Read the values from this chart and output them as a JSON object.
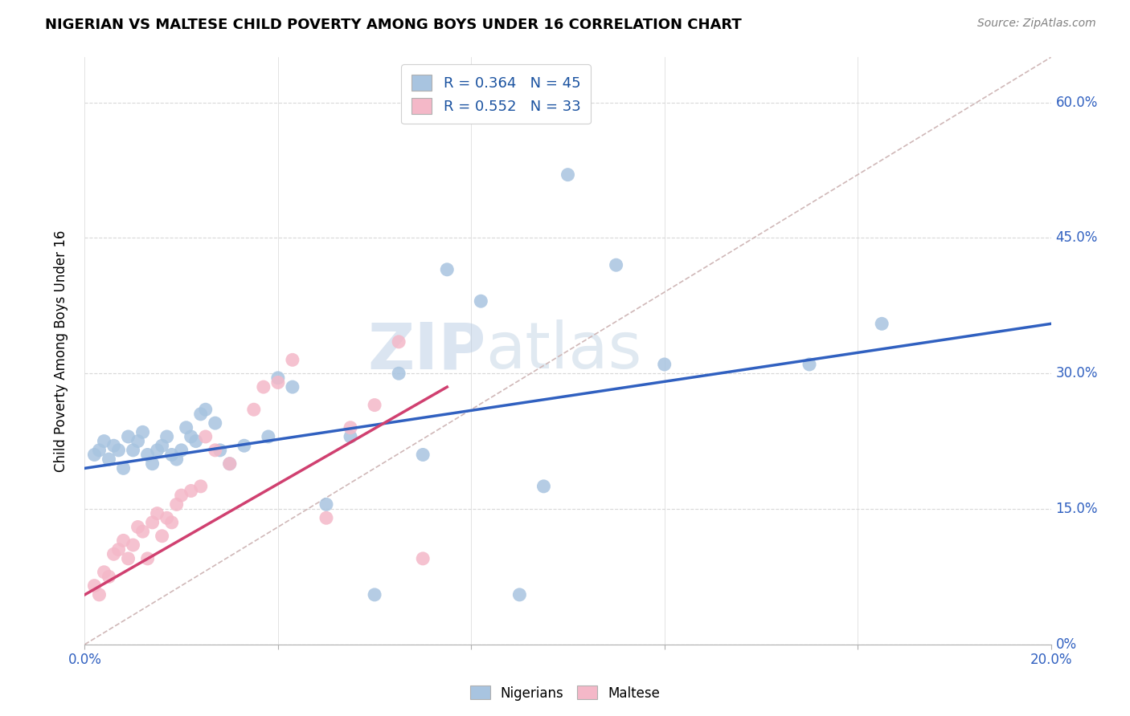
{
  "title": "NIGERIAN VS MALTESE CHILD POVERTY AMONG BOYS UNDER 16 CORRELATION CHART",
  "source": "Source: ZipAtlas.com",
  "ylabel": "Child Poverty Among Boys Under 16",
  "xlim": [
    0.0,
    0.2
  ],
  "ylim": [
    0.0,
    0.65
  ],
  "xticks": [
    0.0,
    0.04,
    0.08,
    0.12,
    0.16,
    0.2
  ],
  "yticks": [
    0.0,
    0.15,
    0.3,
    0.45,
    0.6
  ],
  "nigerian_R": 0.364,
  "nigerian_N": 45,
  "maltese_R": 0.552,
  "maltese_N": 33,
  "nigerian_color": "#a8c4e0",
  "maltese_color": "#f4b8c8",
  "nigerian_line_color": "#3060c0",
  "maltese_line_color": "#d04070",
  "diagonal_color": "#c8c8c8",
  "watermark_zip": "ZIP",
  "watermark_atlas": "atlas",
  "legend_label_nigerian": "Nigerians",
  "legend_label_maltese": "Maltese",
  "nigerian_x": [
    0.002,
    0.003,
    0.004,
    0.005,
    0.006,
    0.007,
    0.008,
    0.009,
    0.01,
    0.011,
    0.012,
    0.013,
    0.014,
    0.015,
    0.016,
    0.017,
    0.018,
    0.019,
    0.02,
    0.021,
    0.022,
    0.023,
    0.024,
    0.025,
    0.027,
    0.028,
    0.03,
    0.033,
    0.038,
    0.04,
    0.043,
    0.05,
    0.055,
    0.06,
    0.065,
    0.07,
    0.075,
    0.082,
    0.09,
    0.095,
    0.1,
    0.11,
    0.12,
    0.15,
    0.165
  ],
  "nigerian_y": [
    0.21,
    0.215,
    0.225,
    0.205,
    0.22,
    0.215,
    0.195,
    0.23,
    0.215,
    0.225,
    0.235,
    0.21,
    0.2,
    0.215,
    0.22,
    0.23,
    0.21,
    0.205,
    0.215,
    0.24,
    0.23,
    0.225,
    0.255,
    0.26,
    0.245,
    0.215,
    0.2,
    0.22,
    0.23,
    0.295,
    0.285,
    0.155,
    0.23,
    0.055,
    0.3,
    0.21,
    0.415,
    0.38,
    0.055,
    0.175,
    0.52,
    0.42,
    0.31,
    0.31,
    0.355
  ],
  "maltese_x": [
    0.002,
    0.003,
    0.004,
    0.005,
    0.006,
    0.007,
    0.008,
    0.009,
    0.01,
    0.011,
    0.012,
    0.013,
    0.014,
    0.015,
    0.016,
    0.017,
    0.018,
    0.019,
    0.02,
    0.022,
    0.024,
    0.025,
    0.027,
    0.03,
    0.035,
    0.037,
    0.04,
    0.043,
    0.05,
    0.055,
    0.06,
    0.065,
    0.07
  ],
  "maltese_y": [
    0.065,
    0.055,
    0.08,
    0.075,
    0.1,
    0.105,
    0.115,
    0.095,
    0.11,
    0.13,
    0.125,
    0.095,
    0.135,
    0.145,
    0.12,
    0.14,
    0.135,
    0.155,
    0.165,
    0.17,
    0.175,
    0.23,
    0.215,
    0.2,
    0.26,
    0.285,
    0.29,
    0.315,
    0.14,
    0.24,
    0.265,
    0.335,
    0.095
  ],
  "nigerian_line_x0": 0.0,
  "nigerian_line_y0": 0.195,
  "nigerian_line_x1": 0.2,
  "nigerian_line_y1": 0.355,
  "maltese_line_x0": 0.0,
  "maltese_line_y0": 0.055,
  "maltese_line_x1": 0.075,
  "maltese_line_y1": 0.285
}
